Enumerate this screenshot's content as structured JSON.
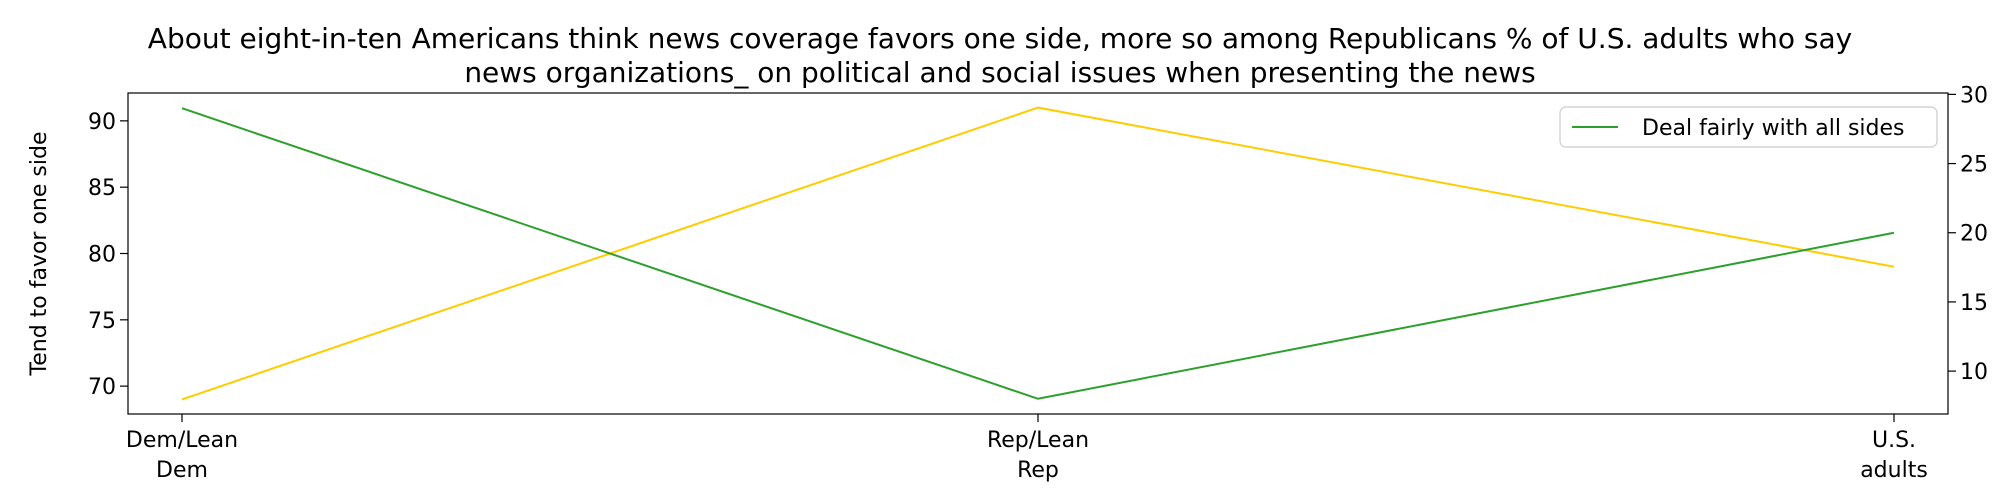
{
  "chart_data": {
    "type": "line",
    "title_lines": [
      "About eight-in-ten Americans think news coverage favors one side, more so among Republicans % of U.S. adults who say",
      "news organizations_ on political and social issues when presenting the news"
    ],
    "categories": [
      [
        "Dem/Lean",
        "Dem"
      ],
      [
        "Rep/Lean",
        "Rep"
      ],
      [
        "U.S.",
        "adults"
      ]
    ],
    "ylabel_left": "Tend to favor one side",
    "ylabel_right": "",
    "yticks_left": [
      70,
      75,
      80,
      85,
      90
    ],
    "yticks_right": [
      10,
      15,
      20,
      25,
      30
    ],
    "ylim_left": [
      67.9,
      92.1
    ],
    "ylim_right": [
      6.9,
      30.1
    ],
    "grid": false,
    "legend": {
      "placement": "upper-right",
      "entries": [
        {
          "label": "Deal fairly with all sides",
          "color": "#2ca02c"
        }
      ]
    },
    "series": [
      {
        "values": [
          69,
          91,
          79
        ],
        "color": "#ffcc00",
        "axis": "left"
      },
      {
        "name": "Deal fairly with all sides",
        "values": [
          29,
          8,
          20
        ],
        "color": "#2ca02c",
        "axis": "right"
      }
    ]
  }
}
